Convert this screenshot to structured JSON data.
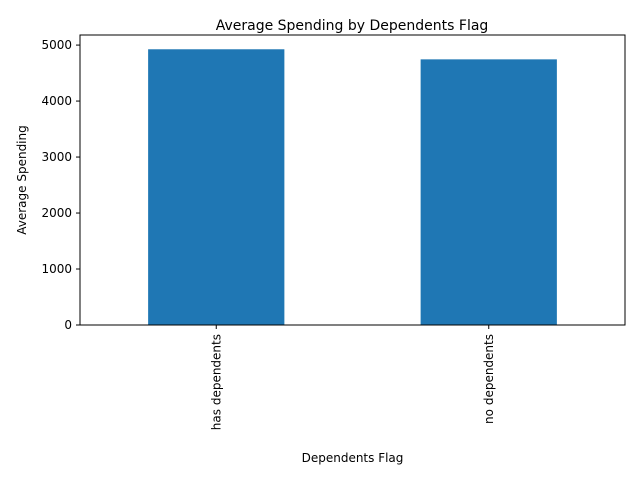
{
  "chart_data": {
    "type": "bar",
    "title": "Average Spending by Dependents Flag",
    "xlabel": "Dependents Flag",
    "ylabel": "Average Spending",
    "categories": [
      "has dependents",
      "no dependents"
    ],
    "values": [
      4925,
      4745
    ],
    "ylim": [
      0,
      5180
    ],
    "yticks": [
      0,
      1000,
      2000,
      3000,
      4000,
      5000
    ],
    "grid": false,
    "legend": "none",
    "bar_color": "#1f77b4"
  }
}
